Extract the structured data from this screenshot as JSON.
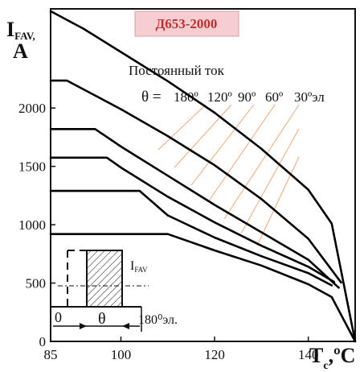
{
  "chart_data": {
    "type": "line",
    "title": "Д653-2000",
    "ylabel_main": "I",
    "ylabel_sub": "FAV,",
    "ylabel_unit": "A",
    "xlabel_main": "T",
    "xlabel_sub": "c",
    "xlabel_unit": ",ºC",
    "xlim": [
      85,
      150
    ],
    "ylim": [
      0,
      2850
    ],
    "x_ticks": [
      "85",
      "100",
      "120",
      "140"
    ],
    "y_ticks": [
      "0",
      "500",
      "1000",
      "1500",
      "2000"
    ],
    "mode_label": "Постоянный ток",
    "theta_prefix": "θ =",
    "angle_labels": [
      "180º",
      "120º",
      "90º",
      "60º",
      "30ºэл"
    ],
    "inset": {
      "current_label": "I",
      "current_sub": "FAV",
      "zero_label": "0",
      "theta_label": "θ",
      "period_label": "180⁰эл."
    },
    "series": [
      {
        "points": [
          [
            85,
            2830
          ],
          [
            92,
            2680
          ],
          [
            100,
            2480
          ],
          [
            110,
            2230
          ],
          [
            120,
            1960
          ],
          [
            130,
            1650
          ],
          [
            140,
            1300
          ],
          [
            145,
            1010
          ],
          [
            150,
            0
          ]
        ]
      },
      {
        "points": [
          [
            85,
            2235
          ],
          [
            88.5,
            2235
          ],
          [
            100,
            1990
          ],
          [
            110,
            1760
          ],
          [
            120,
            1510
          ],
          [
            130,
            1220
          ],
          [
            140,
            880
          ],
          [
            147,
            505
          ]
        ]
      },
      {
        "points": [
          [
            85,
            1820
          ],
          [
            94.5,
            1820
          ],
          [
            100,
            1670
          ],
          [
            110,
            1420
          ],
          [
            120,
            1170
          ],
          [
            130,
            935
          ],
          [
            140,
            700
          ],
          [
            146.5,
            460
          ]
        ]
      },
      {
        "points": [
          [
            85,
            1575
          ],
          [
            97,
            1575
          ],
          [
            100,
            1490
          ],
          [
            110,
            1240
          ],
          [
            120,
            1020
          ],
          [
            130,
            820
          ],
          [
            140,
            640
          ],
          [
            145.5,
            510
          ]
        ]
      },
      {
        "points": [
          [
            85,
            1290
          ],
          [
            104,
            1290
          ],
          [
            110,
            1080
          ],
          [
            120,
            890
          ],
          [
            130,
            730
          ],
          [
            140,
            585
          ],
          [
            145,
            480
          ]
        ]
      },
      {
        "points": [
          [
            85,
            920
          ],
          [
            110,
            920
          ],
          [
            120,
            780
          ],
          [
            130,
            650
          ],
          [
            140,
            490
          ],
          [
            145,
            380
          ],
          [
            150,
            0
          ]
        ]
      }
    ]
  }
}
